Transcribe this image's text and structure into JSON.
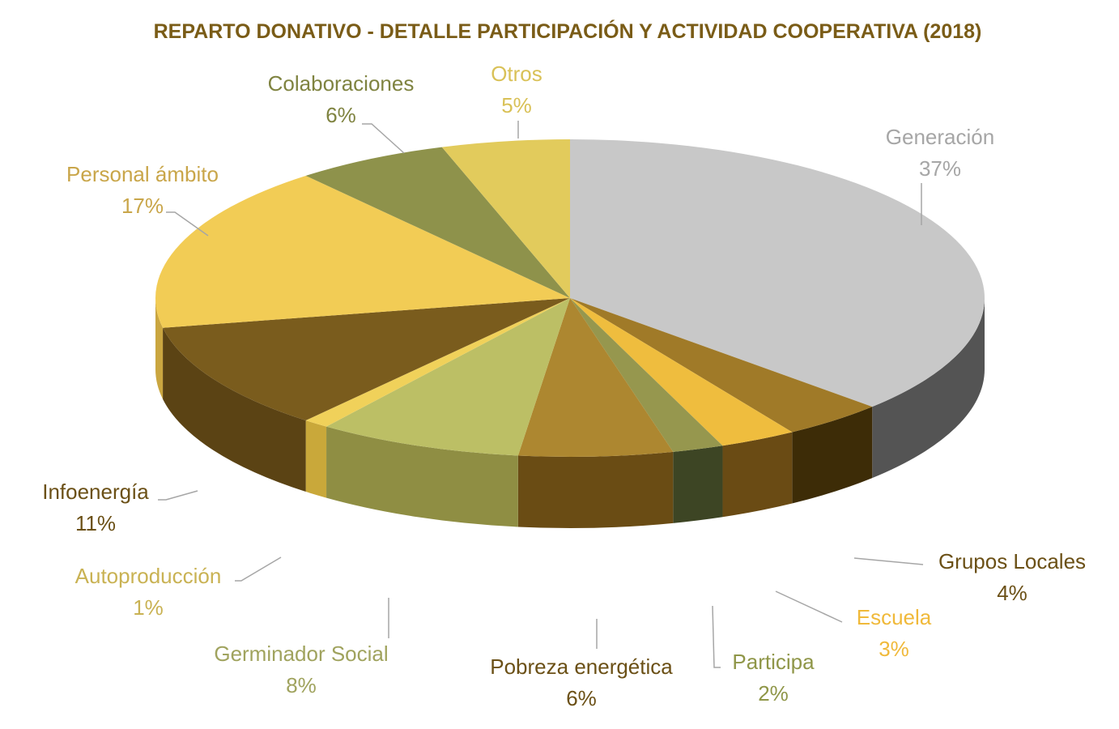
{
  "chart_data": {
    "type": "pie",
    "title": "REPARTO DONATIVO - DETALLE PARTICIPACIÓN Y ACTIVIDAD COOPERATIVA (2018)",
    "slices": [
      {
        "name": "Generación",
        "value": 37,
        "label": "37%",
        "color": "#c8c8c8",
        "side": "#545454",
        "text_color": "#a6a6a6"
      },
      {
        "name": "Grupos Locales",
        "value": 4,
        "label": "4%",
        "color": "#a07a28",
        "side": "#3d2c07",
        "text_color": "#6b5016"
      },
      {
        "name": "Escuela",
        "value": 3,
        "label": "3%",
        "color": "#efbd3e",
        "side": "#6a4b14",
        "text_color": "#f0b93a"
      },
      {
        "name": "Participa",
        "value": 2,
        "label": "2%",
        "color": "#96974e",
        "side": "#3d4524",
        "text_color": "#8f9648"
      },
      {
        "name": "Pobreza energética",
        "value": 6,
        "label": "6%",
        "color": "#ad8730",
        "side": "#6a4c14",
        "text_color": "#6b5016"
      },
      {
        "name": "Germinador Social",
        "value": 8,
        "label": "8%",
        "color": "#bcbf65",
        "side": "#8f8e43",
        "text_color": "#a0a35e"
      },
      {
        "name": "Autoproducción",
        "value": 1,
        "label": "1%",
        "color": "#f0d15a",
        "side": "#c9a83a",
        "text_color": "#c9b253"
      },
      {
        "name": "Infoenergía",
        "value": 11,
        "label": "11%",
        "color": "#7a5c1d",
        "side": "#5b4314",
        "text_color": "#6b5016"
      },
      {
        "name": "Personal ámbito",
        "value": 17,
        "label": "17%",
        "color": "#f2cc55",
        "side": "#caa640",
        "text_color": "#c9a64a"
      },
      {
        "name": "Colaboraciones",
        "value": 6,
        "label": "6%",
        "color": "#8e924b",
        "side": "#6a6d35",
        "text_color": "#7f8340"
      },
      {
        "name": "Otros",
        "value": 5,
        "label": "5%",
        "color": "#e2cb5c",
        "side": "#b8a240",
        "text_color": "#d9c157"
      }
    ]
  }
}
